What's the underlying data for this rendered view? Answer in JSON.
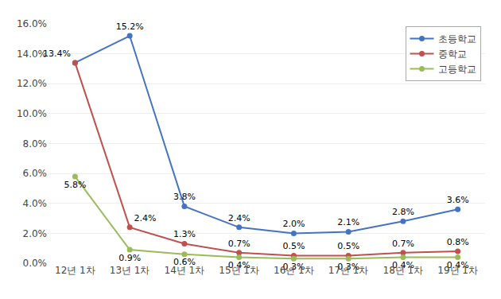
{
  "chart_data": {
    "type": "line",
    "categories": [
      "12년 1차",
      "13년 1차",
      "14년 1차",
      "15년 1차",
      "16년 1차",
      "17년 1차",
      "18년 1차",
      "19년 1차"
    ],
    "series": [
      {
        "name": "초등학교",
        "color": "#4472C4",
        "marker": "circle",
        "values": [
          13.4,
          15.2,
          3.8,
          2.4,
          2.0,
          2.1,
          2.8,
          3.6
        ],
        "value_labels": [
          "13.4%",
          "15.2%",
          "3.8%",
          "2.4%",
          "2.0%",
          "2.1%",
          "2.8%",
          "3.6%"
        ]
      },
      {
        "name": "중학교",
        "color": "#C0504D",
        "marker": "circle",
        "values": [
          13.4,
          2.4,
          1.3,
          0.7,
          0.5,
          0.5,
          0.7,
          0.8
        ],
        "value_labels": [
          null,
          "2.4%",
          "1.3%",
          "0.7%",
          "0.5%",
          "0.5%",
          "0.7%",
          "0.8%"
        ]
      },
      {
        "name": "고등학교",
        "color": "#9BBB59",
        "marker": "circle",
        "values": [
          5.8,
          0.9,
          0.6,
          0.4,
          0.3,
          0.3,
          0.4,
          0.4
        ],
        "value_labels": [
          "5.8%",
          "0.9%",
          "0.6%",
          "0.4%",
          "0.3%",
          "0.3%",
          "0.4%",
          "0.4%"
        ]
      }
    ],
    "ylim": [
      0.0,
      16.0
    ],
    "yticks": [
      {
        "value": 0.0,
        "label": "0.0%"
      },
      {
        "value": 2.0,
        "label": "2.0%"
      },
      {
        "value": 4.0,
        "label": "4.0%"
      },
      {
        "value": 6.0,
        "label": "6.0%"
      },
      {
        "value": 8.0,
        "label": "8.0%"
      },
      {
        "value": 10.0,
        "label": "10.0%"
      },
      {
        "value": 12.0,
        "label": "12.0%"
      },
      {
        "value": 14.0,
        "label": "14.0%"
      },
      {
        "value": 16.0,
        "label": "16.0%"
      }
    ],
    "grid": true,
    "legend": "upper right",
    "data_labels": true
  }
}
